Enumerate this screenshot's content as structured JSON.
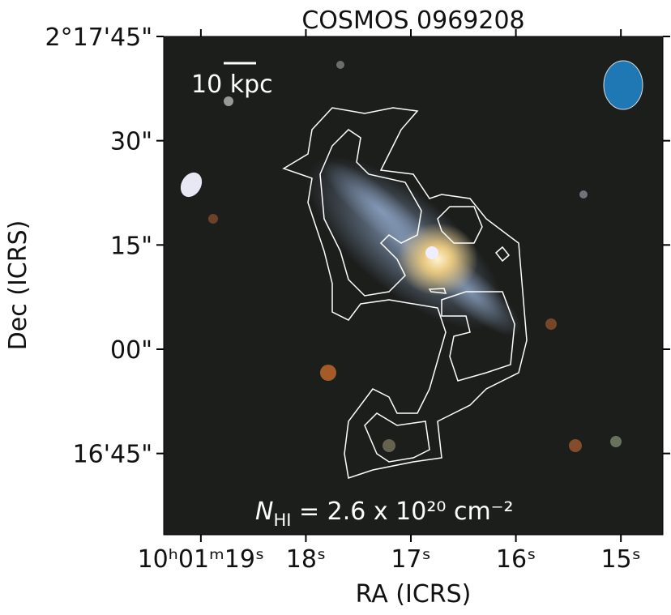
{
  "chart_data": {
    "type": "image",
    "title": "COSMOS 0969208",
    "xlabel": "RA (ICRS)",
    "ylabel": "Dec (ICRS)",
    "xlim": [
      19.354,
      14.6
    ],
    "ylim": [
      -26.7,
      45
    ],
    "xticks": [
      {
        "value": 19,
        "label": "10ʰ01ᵐ19ˢ"
      },
      {
        "value": 18,
        "label": "18ˢ"
      },
      {
        "value": 17,
        "label": "17ˢ"
      },
      {
        "value": 16,
        "label": "16ˢ"
      },
      {
        "value": 15,
        "label": "15ˢ"
      }
    ],
    "yticks": [
      {
        "value": 45,
        "label": "2°17'45\""
      },
      {
        "value": 30,
        "label": "30\""
      },
      {
        "value": 15,
        "label": "15\""
      },
      {
        "value": 0,
        "label": "00\""
      },
      {
        "value": -15,
        "label": "16'45\""
      }
    ],
    "scale_bar_label": "10 kpc",
    "annotation": {
      "symbol": "N",
      "subscript": "HI",
      "text": " = 2.6 x 10²⁰ cm⁻²"
    },
    "beam_color": "#1f77b4"
  }
}
